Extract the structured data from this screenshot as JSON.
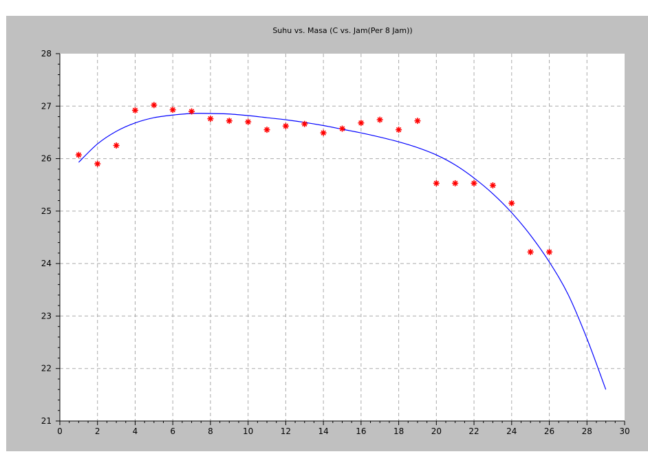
{
  "chart_data": {
    "type": "scatter",
    "title": "Suhu vs. Masa (C vs. Jam(Per 8 Jam))",
    "xlabel": "",
    "ylabel": "",
    "xlim": [
      0,
      30
    ],
    "ylim": [
      21,
      28
    ],
    "x_ticks": [
      0,
      2,
      4,
      6,
      8,
      10,
      12,
      14,
      16,
      18,
      20,
      22,
      24,
      26,
      28,
      30
    ],
    "y_ticks": [
      21,
      22,
      23,
      24,
      25,
      26,
      27,
      28
    ],
    "grid": true,
    "colors": {
      "points": "#ff0000",
      "curve": "#0000ff",
      "figure_bg": "#c0c0c0",
      "plot_bg": "#ffffff",
      "grid": "#aaaaaa"
    },
    "series": [
      {
        "kind": "points",
        "marker": "asterisk",
        "x": [
          1,
          2,
          3,
          4,
          5,
          6,
          7,
          8,
          9,
          10,
          11,
          12,
          13,
          14,
          15,
          16,
          17,
          18,
          19,
          20,
          21,
          22,
          23,
          24,
          25,
          26
        ],
        "y": [
          26.07,
          25.9,
          26.25,
          26.92,
          27.02,
          26.93,
          26.9,
          26.76,
          26.72,
          26.7,
          26.55,
          26.62,
          26.66,
          26.49,
          26.57,
          26.68,
          26.74,
          26.55,
          26.72,
          25.53,
          25.53,
          25.53,
          25.49,
          25.15,
          24.22,
          24.22
        ]
      },
      {
        "kind": "line",
        "x": [
          1,
          2,
          3,
          4,
          5,
          6,
          7,
          8,
          9,
          10,
          11,
          12,
          13,
          14,
          15,
          16,
          17,
          18,
          19,
          20,
          21,
          22,
          23,
          24,
          25,
          26,
          27,
          28,
          29
        ],
        "y": [
          25.93,
          26.28,
          26.52,
          26.68,
          26.78,
          26.83,
          26.86,
          26.86,
          26.85,
          26.82,
          26.78,
          26.74,
          26.69,
          26.63,
          26.56,
          26.49,
          26.41,
          26.32,
          26.21,
          26.07,
          25.88,
          25.63,
          25.33,
          24.97,
          24.54,
          24.03,
          23.41,
          22.57,
          21.6
        ]
      }
    ]
  }
}
